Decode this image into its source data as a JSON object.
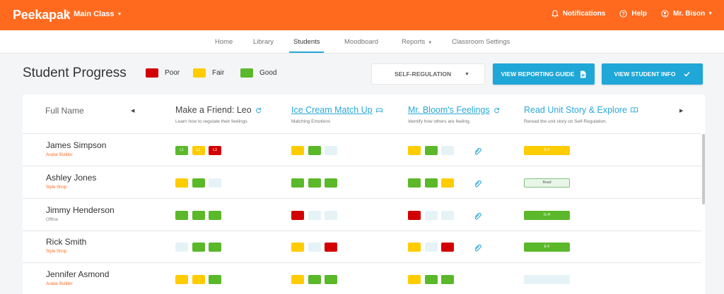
{
  "app": {
    "logo": "Peekapak",
    "class_separator": "|",
    "class_name": "Main Class",
    "notifications": "Notifications",
    "help": "Help",
    "user": "Mr. Bison"
  },
  "nav": {
    "tabs": [
      "Home",
      "Library",
      "Students",
      "Moodboard",
      "Reports",
      "Classroom Settings"
    ],
    "active": "Students"
  },
  "header": {
    "title": "Student Progress",
    "legend": [
      {
        "label": "Poor",
        "color": "#d20000"
      },
      {
        "label": "Fair",
        "color": "#ffcc00"
      },
      {
        "label": "Good",
        "color": "#5ab82a"
      }
    ],
    "dropdown_value": "SELF-REGULATION",
    "btn_reporting": "VIEW REPORTING GUIDE",
    "btn_student_info": "VIEW STUDENT INFO"
  },
  "colors": {
    "poor": "#d20000",
    "fair": "#ffcc00",
    "good": "#5ab82a",
    "empty": "#e5f3f7",
    "accent": "#1ea7d7",
    "brand": "#ff6a1f",
    "sub_orange": "#ff6a1f",
    "sub_gray": "#888888"
  },
  "table": {
    "name_header": "Full Name",
    "columns": [
      {
        "title": "Make a Friend: Leo",
        "subtitle": "Learn how to regulate their feelings.",
        "icon": "refresh-icon",
        "link": false
      },
      {
        "title": "Ice Cream Match Up",
        "subtitle": "Matching Emotions",
        "icon": "gamepad-icon",
        "link": true
      },
      {
        "title": "Mr. Bloom's Feelings",
        "subtitle": "Identify how others are feeling.",
        "icon": "refresh-icon",
        "link": true
      },
      {
        "title": "Read Unit Story & Explore",
        "subtitle": "Reread the unit story on Self-Regulation.",
        "icon": "book-icon",
        "link": false
      }
    ],
    "rows": [
      {
        "name": "James Simpson",
        "sub": "Avatar Builder",
        "sub_color": "orange",
        "c1": [
          {
            "s": "good",
            "t": "L1"
          },
          {
            "s": "fair",
            "t": "L2"
          },
          {
            "s": "poor",
            "t": "L3"
          }
        ],
        "c2": [
          {
            "s": "fair"
          },
          {
            "s": "good"
          },
          {
            "s": "empty"
          }
        ],
        "c3": [
          {
            "s": "fair"
          },
          {
            "s": "good"
          },
          {
            "s": "empty"
          }
        ],
        "clip": true,
        "read": {
          "type": "fair",
          "text": "E-F"
        }
      },
      {
        "name": "Ashley Jones",
        "sub": "Style Shop",
        "sub_color": "orange",
        "c1": [
          {
            "s": "fair"
          },
          {
            "s": "good"
          },
          {
            "s": "empty"
          }
        ],
        "c2": [
          {
            "s": "good"
          },
          {
            "s": "good"
          },
          {
            "s": "good"
          }
        ],
        "c3": [
          {
            "s": "good"
          },
          {
            "s": "good"
          },
          {
            "s": "fair"
          }
        ],
        "clip": true,
        "read": {
          "type": "outline",
          "text": "Read"
        }
      },
      {
        "name": "Jimmy Henderson",
        "sub": "Offline",
        "sub_color": "gray",
        "c1": [
          {
            "s": "good"
          },
          {
            "s": "good"
          },
          {
            "s": "good"
          }
        ],
        "c2": [
          {
            "s": "poor"
          },
          {
            "s": "empty"
          },
          {
            "s": "empty"
          }
        ],
        "c3": [
          {
            "s": "poor"
          },
          {
            "s": "empty"
          },
          {
            "s": "empty"
          }
        ],
        "clip": true,
        "read": {
          "type": "good",
          "text": "G-H"
        }
      },
      {
        "name": "Rick Smith",
        "sub": "Style Shop",
        "sub_color": "orange",
        "c1": [
          {
            "s": "empty"
          },
          {
            "s": "good"
          },
          {
            "s": "good"
          }
        ],
        "c2": [
          {
            "s": "fair"
          },
          {
            "s": "empty"
          },
          {
            "s": "poor"
          }
        ],
        "c3": [
          {
            "s": "fair"
          },
          {
            "s": "empty"
          },
          {
            "s": "poor"
          }
        ],
        "clip": true,
        "read": {
          "type": "good",
          "text": "E-F"
        }
      },
      {
        "name": "Jennifer Asmond",
        "sub": "Avatar Builder",
        "sub_color": "orange",
        "c1": [
          {
            "s": "fair"
          },
          {
            "s": "fair"
          },
          {
            "s": "good"
          }
        ],
        "c2": [
          {
            "s": "fair"
          },
          {
            "s": "good"
          },
          {
            "s": "good"
          }
        ],
        "c3": [
          {
            "s": "fair"
          },
          {
            "s": "good"
          },
          {
            "s": "good"
          }
        ],
        "clip": false,
        "read": {
          "type": "empty",
          "text": ""
        }
      }
    ]
  }
}
